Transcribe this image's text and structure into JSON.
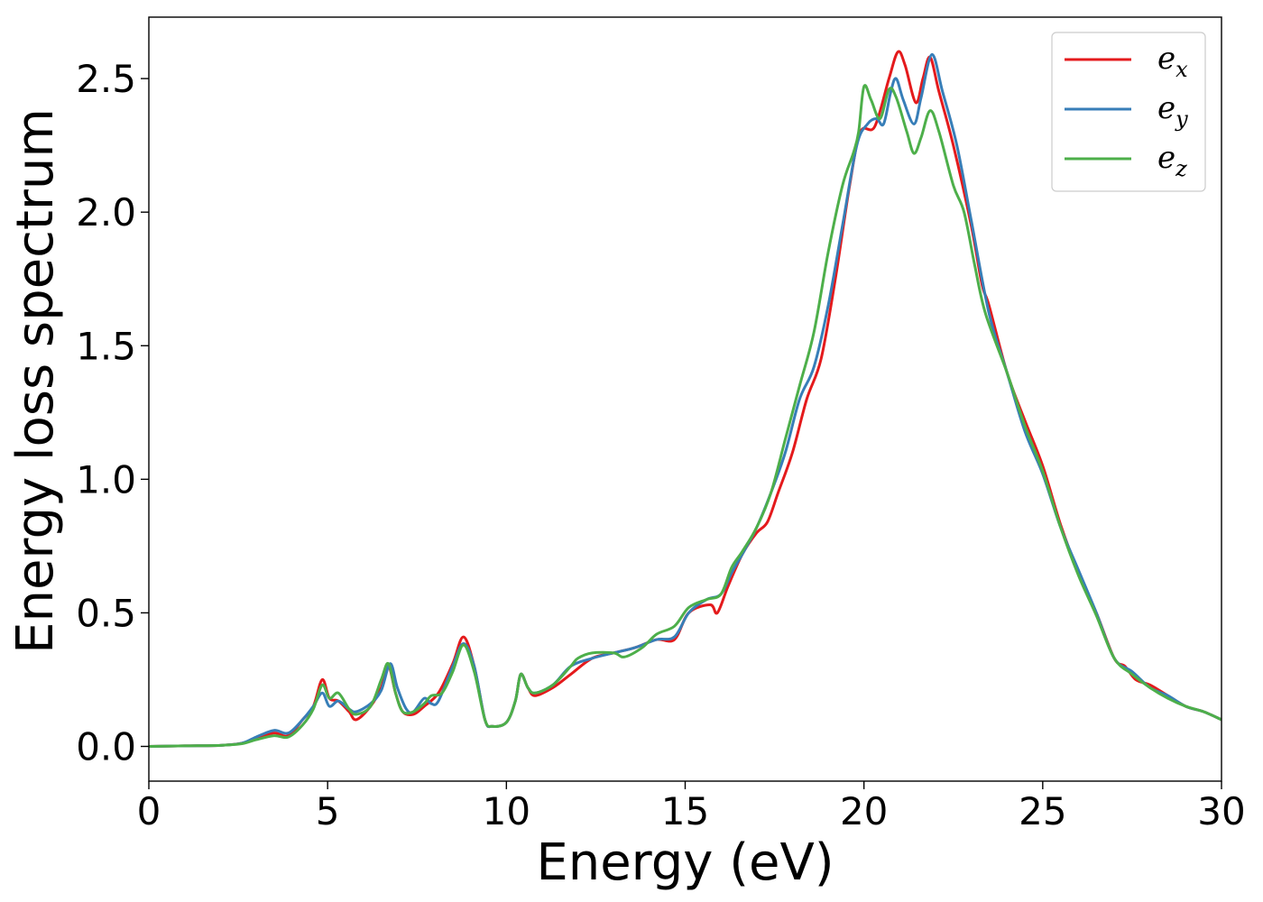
{
  "chart_data": {
    "type": "line",
    "xlabel": "Energy (eV)",
    "ylabel": "Energy loss spectrum",
    "xlim": [
      0,
      30
    ],
    "ylim": [
      -0.13,
      2.73
    ],
    "xticks": [
      0,
      5,
      10,
      15,
      20,
      25,
      30
    ],
    "xtick_labels": [
      "0",
      "5",
      "10",
      "15",
      "20",
      "25",
      "30"
    ],
    "yticks": [
      0.0,
      0.5,
      1.0,
      1.5,
      2.0,
      2.5
    ],
    "ytick_labels": [
      "0.0",
      "0.5",
      "1.0",
      "1.5",
      "2.0",
      "2.5"
    ],
    "grid": false,
    "legend_position": "top-right",
    "series": [
      {
        "name": "e_x",
        "legend_base": "e",
        "legend_sub": "x",
        "color": "#e41a1c",
        "points": [
          [
            0,
            0
          ],
          [
            1,
            0.002
          ],
          [
            2,
            0.004
          ],
          [
            2.6,
            0.012
          ],
          [
            3,
            0.03
          ],
          [
            3.5,
            0.05
          ],
          [
            3.9,
            0.04
          ],
          [
            4.3,
            0.1
          ],
          [
            4.6,
            0.15
          ],
          [
            4.85,
            0.25
          ],
          [
            5.05,
            0.18
          ],
          [
            5.3,
            0.17
          ],
          [
            5.6,
            0.13
          ],
          [
            5.8,
            0.1
          ],
          [
            6.2,
            0.15
          ],
          [
            6.5,
            0.22
          ],
          [
            6.7,
            0.3
          ],
          [
            6.9,
            0.2
          ],
          [
            7.1,
            0.13
          ],
          [
            7.4,
            0.12
          ],
          [
            7.7,
            0.15
          ],
          [
            8.1,
            0.2
          ],
          [
            8.5,
            0.31
          ],
          [
            8.8,
            0.41
          ],
          [
            9.1,
            0.3
          ],
          [
            9.4,
            0.1
          ],
          [
            9.6,
            0.075
          ],
          [
            10.0,
            0.09
          ],
          [
            10.25,
            0.17
          ],
          [
            10.4,
            0.27
          ],
          [
            10.6,
            0.22
          ],
          [
            10.8,
            0.19
          ],
          [
            11.3,
            0.22
          ],
          [
            11.8,
            0.27
          ],
          [
            12.4,
            0.33
          ],
          [
            13.0,
            0.35
          ],
          [
            13.6,
            0.37
          ],
          [
            14.2,
            0.4
          ],
          [
            14.7,
            0.4
          ],
          [
            15.1,
            0.5
          ],
          [
            15.7,
            0.53
          ],
          [
            15.9,
            0.5
          ],
          [
            16.2,
            0.6
          ],
          [
            16.6,
            0.72
          ],
          [
            17.0,
            0.8
          ],
          [
            17.3,
            0.84
          ],
          [
            17.6,
            0.95
          ],
          [
            18.0,
            1.1
          ],
          [
            18.4,
            1.3
          ],
          [
            18.8,
            1.45
          ],
          [
            19.2,
            1.75
          ],
          [
            19.6,
            2.1
          ],
          [
            19.9,
            2.3
          ],
          [
            20.3,
            2.32
          ],
          [
            20.7,
            2.5
          ],
          [
            20.95,
            2.6
          ],
          [
            21.15,
            2.55
          ],
          [
            21.45,
            2.41
          ],
          [
            21.65,
            2.5
          ],
          [
            21.85,
            2.58
          ],
          [
            22.1,
            2.45
          ],
          [
            22.5,
            2.25
          ],
          [
            23.0,
            1.95
          ],
          [
            23.3,
            1.73
          ],
          [
            23.5,
            1.65
          ],
          [
            24.0,
            1.4
          ],
          [
            24.5,
            1.22
          ],
          [
            25.0,
            1.05
          ],
          [
            25.5,
            0.83
          ],
          [
            26.0,
            0.65
          ],
          [
            26.5,
            0.5
          ],
          [
            27.0,
            0.33
          ],
          [
            27.3,
            0.3
          ],
          [
            27.6,
            0.25
          ],
          [
            28,
            0.23
          ],
          [
            28.5,
            0.19
          ],
          [
            29,
            0.15
          ],
          [
            29.5,
            0.13
          ],
          [
            30,
            0.1
          ]
        ]
      },
      {
        "name": "e_y",
        "legend_base": "e",
        "legend_sub": "y",
        "color": "#377eb8",
        "points": [
          [
            0,
            0
          ],
          [
            1,
            0.002
          ],
          [
            2,
            0.004
          ],
          [
            2.6,
            0.012
          ],
          [
            3,
            0.035
          ],
          [
            3.5,
            0.06
          ],
          [
            3.9,
            0.05
          ],
          [
            4.3,
            0.1
          ],
          [
            4.6,
            0.15
          ],
          [
            4.85,
            0.2
          ],
          [
            5.05,
            0.15
          ],
          [
            5.3,
            0.17
          ],
          [
            5.6,
            0.14
          ],
          [
            5.8,
            0.13
          ],
          [
            6.2,
            0.16
          ],
          [
            6.5,
            0.21
          ],
          [
            6.75,
            0.31
          ],
          [
            6.95,
            0.22
          ],
          [
            7.2,
            0.14
          ],
          [
            7.4,
            0.13
          ],
          [
            7.7,
            0.18
          ],
          [
            7.9,
            0.16
          ],
          [
            8.1,
            0.17
          ],
          [
            8.5,
            0.3
          ],
          [
            8.8,
            0.385
          ],
          [
            9.1,
            0.3
          ],
          [
            9.4,
            0.1
          ],
          [
            9.6,
            0.075
          ],
          [
            10.0,
            0.09
          ],
          [
            10.25,
            0.17
          ],
          [
            10.4,
            0.27
          ],
          [
            10.6,
            0.22
          ],
          [
            10.8,
            0.2
          ],
          [
            11.3,
            0.23
          ],
          [
            11.8,
            0.3
          ],
          [
            12.4,
            0.33
          ],
          [
            13.0,
            0.35
          ],
          [
            13.6,
            0.37
          ],
          [
            14.2,
            0.4
          ],
          [
            14.7,
            0.41
          ],
          [
            15.1,
            0.5
          ],
          [
            15.6,
            0.55
          ],
          [
            16.0,
            0.57
          ],
          [
            16.3,
            0.65
          ],
          [
            16.6,
            0.72
          ],
          [
            17.0,
            0.82
          ],
          [
            17.4,
            0.95
          ],
          [
            17.8,
            1.1
          ],
          [
            18.2,
            1.3
          ],
          [
            18.6,
            1.42
          ],
          [
            19.0,
            1.65
          ],
          [
            19.4,
            1.95
          ],
          [
            19.8,
            2.25
          ],
          [
            20.1,
            2.33
          ],
          [
            20.35,
            2.35
          ],
          [
            20.55,
            2.33
          ],
          [
            20.75,
            2.45
          ],
          [
            20.9,
            2.5
          ],
          [
            21.1,
            2.42
          ],
          [
            21.4,
            2.33
          ],
          [
            21.6,
            2.43
          ],
          [
            21.9,
            2.59
          ],
          [
            22.2,
            2.45
          ],
          [
            22.6,
            2.25
          ],
          [
            23.0,
            1.97
          ],
          [
            23.5,
            1.62
          ],
          [
            24.0,
            1.4
          ],
          [
            24.5,
            1.18
          ],
          [
            25.0,
            1.02
          ],
          [
            25.5,
            0.82
          ],
          [
            26.0,
            0.66
          ],
          [
            26.5,
            0.5
          ],
          [
            27.0,
            0.33
          ],
          [
            27.5,
            0.28
          ],
          [
            28,
            0.22
          ],
          [
            28.5,
            0.19
          ],
          [
            29,
            0.15
          ],
          [
            29.5,
            0.13
          ],
          [
            30,
            0.1
          ]
        ]
      },
      {
        "name": "e_z",
        "legend_base": "e",
        "legend_sub": "z",
        "color": "#4daf4a",
        "points": [
          [
            0,
            0
          ],
          [
            1,
            0.002
          ],
          [
            2,
            0.004
          ],
          [
            2.6,
            0.01
          ],
          [
            3,
            0.025
          ],
          [
            3.5,
            0.04
          ],
          [
            3.9,
            0.035
          ],
          [
            4.3,
            0.08
          ],
          [
            4.6,
            0.14
          ],
          [
            4.85,
            0.23
          ],
          [
            5.05,
            0.18
          ],
          [
            5.3,
            0.2
          ],
          [
            5.6,
            0.14
          ],
          [
            5.8,
            0.12
          ],
          [
            6.2,
            0.15
          ],
          [
            6.5,
            0.25
          ],
          [
            6.7,
            0.31
          ],
          [
            6.9,
            0.2
          ],
          [
            7.1,
            0.13
          ],
          [
            7.4,
            0.13
          ],
          [
            7.7,
            0.16
          ],
          [
            7.9,
            0.19
          ],
          [
            8.2,
            0.2
          ],
          [
            8.5,
            0.28
          ],
          [
            8.8,
            0.38
          ],
          [
            9.1,
            0.28
          ],
          [
            9.4,
            0.1
          ],
          [
            9.6,
            0.075
          ],
          [
            10.0,
            0.09
          ],
          [
            10.25,
            0.17
          ],
          [
            10.4,
            0.27
          ],
          [
            10.6,
            0.22
          ],
          [
            10.8,
            0.2
          ],
          [
            11.3,
            0.23
          ],
          [
            11.8,
            0.3
          ],
          [
            12.0,
            0.33
          ],
          [
            12.4,
            0.35
          ],
          [
            13.0,
            0.35
          ],
          [
            13.3,
            0.335
          ],
          [
            13.8,
            0.37
          ],
          [
            14.2,
            0.42
          ],
          [
            14.7,
            0.45
          ],
          [
            15.1,
            0.52
          ],
          [
            15.6,
            0.55
          ],
          [
            16.0,
            0.57
          ],
          [
            16.3,
            0.67
          ],
          [
            16.6,
            0.73
          ],
          [
            17.0,
            0.82
          ],
          [
            17.4,
            0.95
          ],
          [
            17.8,
            1.15
          ],
          [
            18.2,
            1.35
          ],
          [
            18.6,
            1.55
          ],
          [
            19.0,
            1.85
          ],
          [
            19.4,
            2.1
          ],
          [
            19.7,
            2.22
          ],
          [
            19.85,
            2.3
          ],
          [
            20.0,
            2.47
          ],
          [
            20.2,
            2.42
          ],
          [
            20.45,
            2.35
          ],
          [
            20.7,
            2.46
          ],
          [
            20.9,
            2.43
          ],
          [
            21.2,
            2.3
          ],
          [
            21.4,
            2.22
          ],
          [
            21.6,
            2.28
          ],
          [
            21.85,
            2.38
          ],
          [
            22.1,
            2.3
          ],
          [
            22.5,
            2.1
          ],
          [
            22.8,
            2.0
          ],
          [
            23.1,
            1.8
          ],
          [
            23.4,
            1.62
          ],
          [
            24.0,
            1.4
          ],
          [
            24.5,
            1.2
          ],
          [
            25.0,
            1.03
          ],
          [
            25.5,
            0.82
          ],
          [
            26.0,
            0.64
          ],
          [
            26.5,
            0.49
          ],
          [
            27.0,
            0.33
          ],
          [
            27.5,
            0.27
          ],
          [
            28,
            0.22
          ],
          [
            28.5,
            0.18
          ],
          [
            29,
            0.15
          ],
          [
            29.5,
            0.13
          ],
          [
            30,
            0.1
          ]
        ]
      }
    ]
  }
}
